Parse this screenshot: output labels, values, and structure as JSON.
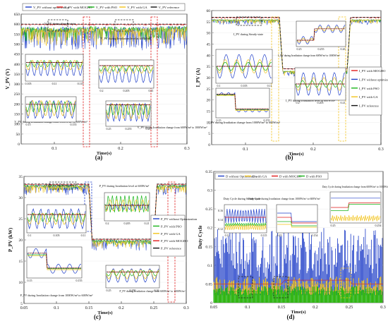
{
  "colors": {
    "no_opt": "#1f3ec8",
    "pso": "#18b418",
    "ga": "#f2c31a",
    "mogho": "#e01a1a",
    "reference": "#111111",
    "inset_box": "#ffffff",
    "highlight": "#c81cc8"
  },
  "chart_data": [
    {
      "panel": "(a)",
      "type": "line",
      "ylabel": "V_PV (V)",
      "xlabel": "Time(s)",
      "xlim": [
        0.05,
        0.3
      ],
      "ylim": [
        0,
        650
      ],
      "xticks": [
        "0.1",
        "0.2",
        "0.3"
      ],
      "yticks": [
        "0",
        "50",
        "100",
        "150",
        "200",
        "250",
        "300",
        "350",
        "400",
        "450",
        "500",
        "550",
        "600",
        "650"
      ],
      "legend": [
        "V_PV without optimization",
        "V_PV with MOGHO",
        "V_PV with PSO",
        "V_PV with GA",
        "V_PV reference"
      ],
      "legend_placement": "top",
      "series": [
        {
          "name": "V_PV without optimization",
          "color_key": "no_opt",
          "x": [
            0.05,
            0.1,
            0.15,
            0.155,
            0.2,
            0.25,
            0.255,
            0.3
          ],
          "values": [
            590,
            585,
            590,
            588,
            585,
            588,
            590,
            590
          ]
        },
        {
          "name": "V_PV with MOGHO",
          "color_key": "mogho",
          "x": [
            0.05,
            0.1,
            0.15,
            0.155,
            0.2,
            0.25,
            0.255,
            0.3
          ],
          "values": [
            600,
            600,
            600,
            600,
            600,
            600,
            600,
            600
          ]
        },
        {
          "name": "V_PV with PSO",
          "color_key": "pso",
          "x": [
            0.05,
            0.1,
            0.15,
            0.155,
            0.2,
            0.25,
            0.255,
            0.3
          ],
          "values": [
            585,
            585,
            585,
            590,
            585,
            585,
            590,
            590
          ]
        },
        {
          "name": "V_PV with GA",
          "color_key": "ga",
          "x": [
            0.05,
            0.1,
            0.15,
            0.155,
            0.2,
            0.25,
            0.255,
            0.3
          ],
          "values": [
            580,
            580,
            580,
            585,
            580,
            580,
            585,
            585
          ]
        },
        {
          "name": "V_PV reference",
          "color_key": "reference",
          "x": [
            0.05,
            0.3
          ],
          "values": [
            600,
            600
          ]
        }
      ],
      "annotations": [
        "V_PV during Steady-state",
        "V_PV during Irradiation level at 600W/m²",
        "V_PV during Irradiation change from 1000W/m² to 600W/m²",
        "V_PV during Irradiation change from 600W/m² to 1000W/m²"
      ],
      "inset_ticks": [
        [
          "0.105",
          "0.11",
          "0.115"
        ],
        [
          "0.2",
          "0.205",
          "0.21"
        ],
        [
          "0.15",
          "0.155"
        ],
        [
          "0.25",
          "0.255",
          "0.26"
        ]
      ]
    },
    {
      "panel": "(b)",
      "type": "line",
      "ylabel": "I_PV (A)",
      "xlabel": "Time(s)",
      "xlim": [
        0.05,
        0.3
      ],
      "ylim": [
        0,
        60
      ],
      "xticks": [
        "0.1",
        "0.2",
        "0.3"
      ],
      "yticks": [
        "0",
        "5",
        "10",
        "15",
        "20",
        "25",
        "30",
        "35",
        "40",
        "45",
        "50",
        "55",
        "60"
      ],
      "legend": [
        "I_PV with MOGHO",
        "I_PV without optimization",
        "I_PV with PSO",
        "I_PV with GA",
        "I_PV reference"
      ],
      "legend_placement": "right",
      "series": [
        {
          "name": "I_PV with MOGHO",
          "color_key": "mogho",
          "x": [
            0.05,
            0.15,
            0.155,
            0.25,
            0.255,
            0.3
          ],
          "values": [
            57,
            57,
            34,
            34,
            57,
            57
          ]
        },
        {
          "name": "I_PV without optimization",
          "color_key": "no_opt",
          "x": [
            0.05,
            0.15,
            0.155,
            0.25,
            0.255,
            0.3
          ],
          "values": [
            56,
            56,
            33,
            33,
            56,
            56
          ]
        },
        {
          "name": "I_PV with PSO",
          "color_key": "pso",
          "x": [
            0.05,
            0.15,
            0.155,
            0.25,
            0.255,
            0.3
          ],
          "values": [
            56,
            56,
            33,
            33,
            56,
            56
          ]
        },
        {
          "name": "I_PV with GA",
          "color_key": "ga",
          "x": [
            0.05,
            0.15,
            0.155,
            0.25,
            0.255,
            0.3
          ],
          "values": [
            56,
            56,
            33,
            33,
            56,
            56
          ]
        },
        {
          "name": "I_PV reference",
          "color_key": "reference",
          "x": [
            0.05,
            0.15,
            0.155,
            0.25,
            0.255,
            0.3
          ],
          "values": [
            57,
            57,
            34,
            34,
            57,
            57
          ]
        }
      ],
      "annotations": [
        "I_PV during Steady-state",
        "I_PV during Irradiation change from 1000W/m² to 600W/m²",
        "I_PV during Irradiation level at 600W/m²",
        "I_PV during Irradiation change from 600W/m² to 1000W/m²"
      ],
      "inset_ticks": [
        [
          "0.1",
          "0.105",
          "0.11"
        ],
        [
          "0.15",
          "0.155"
        ],
        [
          "0.2",
          "0.205",
          "0.21"
        ],
        [
          "0.25",
          "0.255",
          "0.26"
        ]
      ]
    },
    {
      "panel": "(c)",
      "type": "line",
      "ylabel": "P_PV (kW)",
      "xlabel": "Time(s)",
      "xlim": [
        0.05,
        0.3
      ],
      "ylim": [
        5,
        35
      ],
      "xticks": [
        "0.05",
        "0.1",
        "0.15",
        "0.2",
        "0.25",
        "0.3"
      ],
      "yticks": [
        "5",
        "10",
        "15",
        "20",
        "25",
        "30",
        "35"
      ],
      "legend": [
        "P_PV without Optimization",
        "P_PV with PSO",
        "P_PV with GA",
        "P_PV with MOGHO",
        "P_PV reference"
      ],
      "legend_placement": "right",
      "series": [
        {
          "name": "P_PV without Optimization",
          "color_key": "no_opt",
          "x": [
            0.05,
            0.15,
            0.155,
            0.25,
            0.255,
            0.3
          ],
          "values": [
            33,
            33,
            20,
            20,
            33,
            33
          ]
        },
        {
          "name": "P_PV with PSO",
          "color_key": "pso",
          "x": [
            0.05,
            0.15,
            0.155,
            0.25,
            0.255,
            0.3
          ],
          "values": [
            33,
            33,
            20,
            20,
            33,
            33
          ]
        },
        {
          "name": "P_PV with GA",
          "color_key": "ga",
          "x": [
            0.05,
            0.15,
            0.155,
            0.25,
            0.255,
            0.3
          ],
          "values": [
            32.8,
            32.8,
            19.8,
            19.8,
            32.8,
            32.8
          ]
        },
        {
          "name": "P_PV with MOGHO",
          "color_key": "mogho",
          "x": [
            0.05,
            0.15,
            0.155,
            0.25,
            0.255,
            0.3
          ],
          "values": [
            33.2,
            33.2,
            20.2,
            20.2,
            33.2,
            33.2
          ]
        },
        {
          "name": "P_PV reference",
          "color_key": "reference",
          "x": [
            0.05,
            0.15,
            0.155,
            0.25,
            0.255,
            0.3
          ],
          "values": [
            33.2,
            33.2,
            20.2,
            20.2,
            33.2,
            33.2
          ]
        }
      ],
      "annotations": [
        "P_PV during Steady-state",
        "P_PV during Irradiation level at 600W/m²",
        "P_PV during Irradiation change from 1000W/m² to 600W/m²",
        "P_PV during Irradiation change from 600W/m² to 1000W/m²"
      ],
      "inset_ticks": [
        [
          "0.1",
          "0.105",
          "0.11"
        ],
        [
          "0.2",
          "0.205",
          "0.21"
        ],
        [
          "0.15",
          "0.155"
        ],
        [
          "0.25",
          "0.255",
          "0.26"
        ]
      ]
    },
    {
      "panel": "(d)",
      "type": "line",
      "ylabel": "Duty Cycle",
      "xlabel": "Time(s)",
      "xlim": [
        0.05,
        0.3
      ],
      "ylim": [
        0,
        0.35
      ],
      "xticks": [
        "0.05",
        "0.1",
        "0.15",
        "0.2",
        "0.25",
        "0.3"
      ],
      "yticks": [
        "0",
        "0.05",
        "0.1",
        "0.15",
        "0.2",
        "0.25",
        "0.3",
        "0.35"
      ],
      "legend": [
        "D without Optimization",
        "D with GA",
        "D with MOGHO",
        "D with PSO"
      ],
      "legend_placement": "top",
      "series": [
        {
          "name": "D without Optimization",
          "color_key": "no_opt",
          "x": [
            0.05,
            0.3
          ],
          "values": [
            0.05,
            0.05
          ]
        },
        {
          "name": "D with GA",
          "color_key": "ga",
          "x": [
            0.05,
            0.3
          ],
          "values": [
            0.05,
            0.05
          ]
        },
        {
          "name": "D with MOGHO",
          "color_key": "mogho",
          "x": [
            0.05,
            0.15,
            0.155,
            0.25,
            0.255,
            0.3
          ],
          "values": [
            0.05,
            0.05,
            0.06,
            0.06,
            0.05,
            0.05
          ]
        },
        {
          "name": "D with PSO",
          "color_key": "pso",
          "x": [
            0.05,
            0.3
          ],
          "values": [
            0.03,
            0.03
          ]
        }
      ],
      "annotations": [
        "Duty Cycle during Steady-state",
        "Duty Cycle during Irradiation change from 1000W/m² to 600W/m²",
        "Duty Cycle during Irradiation change from 600W/m² to 1000W/m²"
      ],
      "inset_yticks": [
        "0.12",
        "0.14",
        "0.16"
      ],
      "inset_ticks": [
        [
          "0.11",
          "0.115"
        ],
        [
          "0.15",
          "0.154"
        ],
        [
          "0.25",
          "0.254"
        ]
      ]
    }
  ],
  "panel_labels": [
    "(a)",
    "(b)",
    "(c)",
    "(d)"
  ]
}
